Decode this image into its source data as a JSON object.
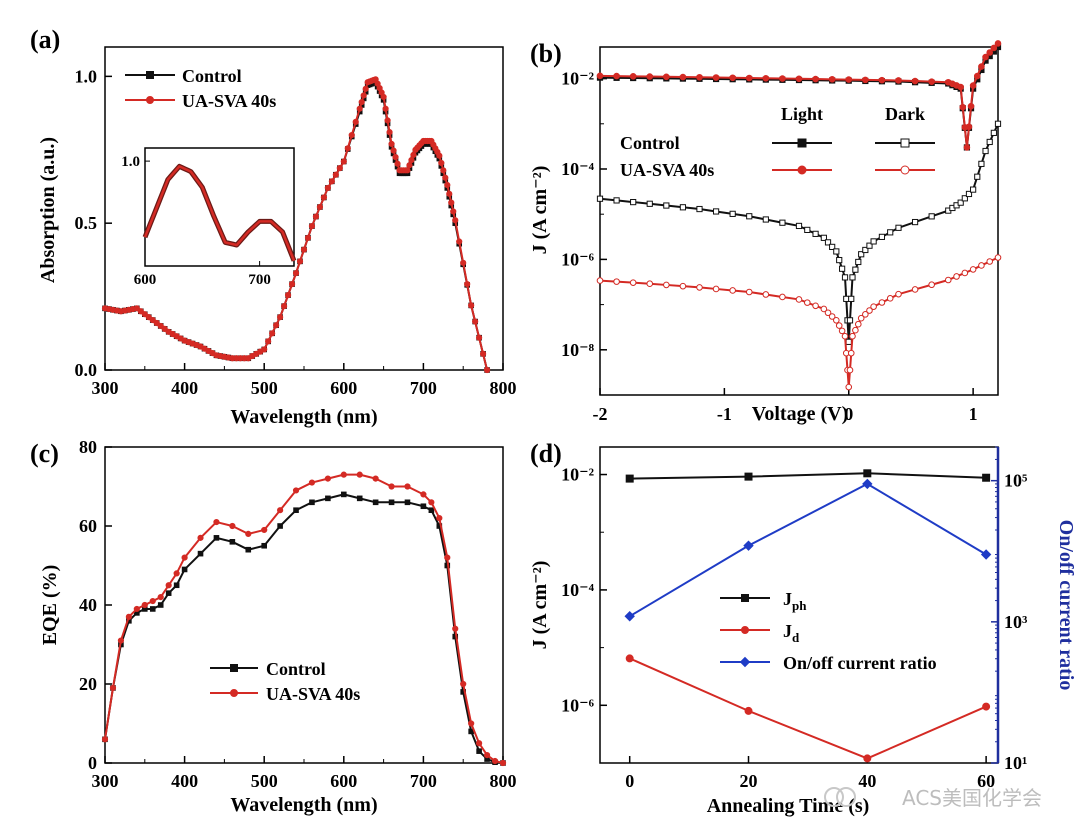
{
  "colors": {
    "black": "#111111",
    "red": "#d42a24",
    "blue": "#1f3cc6",
    "axis_right": "#1f2f9e"
  },
  "watermark": "ACS美国化学会",
  "chart_data": [
    {
      "id": "a",
      "panel_label": "(a)",
      "type": "line",
      "xlabel": "Wavelength (nm)",
      "ylabel": "Absorption (a.u.)",
      "xlim": [
        300,
        800
      ],
      "ylim": [
        0,
        1.1
      ],
      "xticks": [
        300,
        400,
        500,
        600,
        700,
        800
      ],
      "yticks": [
        0.0,
        0.5,
        1.0
      ],
      "ytick_labels": [
        "0.0",
        "0.5",
        "1.0"
      ],
      "legend": {
        "placement": "top-left"
      },
      "x": [
        300,
        320,
        340,
        360,
        380,
        400,
        420,
        440,
        460,
        480,
        500,
        520,
        540,
        560,
        580,
        600,
        620,
        630,
        640,
        650,
        660,
        670,
        680,
        690,
        700,
        710,
        720,
        730,
        740,
        760,
        780
      ],
      "series": [
        {
          "name": "Control",
          "color": "black",
          "marker": "square",
          "values": [
            0.21,
            0.2,
            0.21,
            0.17,
            0.13,
            0.1,
            0.08,
            0.05,
            0.04,
            0.04,
            0.07,
            0.18,
            0.33,
            0.49,
            0.62,
            0.71,
            0.88,
            0.97,
            0.98,
            0.92,
            0.76,
            0.67,
            0.67,
            0.74,
            0.77,
            0.77,
            0.72,
            0.62,
            0.5,
            0.22,
            0.0
          ]
        },
        {
          "name": "UA-SVA 40s",
          "color": "red",
          "marker": "circle",
          "values": [
            0.21,
            0.2,
            0.21,
            0.17,
            0.13,
            0.1,
            0.08,
            0.05,
            0.04,
            0.04,
            0.07,
            0.18,
            0.33,
            0.49,
            0.62,
            0.71,
            0.89,
            0.98,
            0.99,
            0.93,
            0.77,
            0.68,
            0.68,
            0.75,
            0.78,
            0.78,
            0.73,
            0.63,
            0.51,
            0.22,
            0.0
          ]
        }
      ],
      "inset": {
        "xlim": [
          600,
          730
        ],
        "ylim": [
          0.6,
          1.05
        ],
        "xticks": [
          600,
          700
        ],
        "yticks": [
          1.0
        ],
        "ytick_labels": [
          "1.0"
        ],
        "x": [
          600,
          610,
          620,
          630,
          640,
          650,
          660,
          670,
          680,
          690,
          700,
          710,
          720,
          730
        ],
        "values": [
          0.71,
          0.82,
          0.93,
          0.98,
          0.96,
          0.9,
          0.79,
          0.69,
          0.68,
          0.73,
          0.77,
          0.77,
          0.73,
          0.62
        ]
      }
    },
    {
      "id": "b",
      "panel_label": "(b)",
      "type": "line",
      "yscale": "log",
      "xlabel": "Voltage (V)",
      "ylabel": "J (A cm⁻²)",
      "xlim": [
        -2,
        1.2
      ],
      "ylim": [
        1e-09,
        0.05
      ],
      "xticks": [
        -2,
        -1,
        0,
        1
      ],
      "xtick_labels": [
        "-2",
        "-1",
        "0",
        "1"
      ],
      "yticks": [
        1e-08,
        1e-06,
        0.0001,
        0.01
      ],
      "ytick_labels": [
        "10⁻⁸",
        "10⁻⁶",
        "10⁻⁴",
        "10⁻²"
      ],
      "legend": {
        "placement": "upper-right",
        "col_light": "Light",
        "col_dark": "Dark",
        "row_control": "Control",
        "row_ua": "UA-SVA 40s"
      },
      "series": [
        {
          "name": "Control Light",
          "color": "black",
          "marker": "square-filled",
          "x": [
            -2,
            -1.6,
            -1.2,
            -0.8,
            -0.4,
            0,
            0.4,
            0.8,
            0.9,
            0.95,
            1.0,
            1.1,
            1.2
          ],
          "values": [
            0.0105,
            0.0102,
            0.0099,
            0.0096,
            0.0093,
            0.009,
            0.0086,
            0.0078,
            0.006,
            0.0003,
            0.006,
            0.025,
            0.05
          ]
        },
        {
          "name": "UA-SVA 40s Light",
          "color": "red",
          "marker": "circle-filled",
          "x": [
            -2,
            -1.6,
            -1.2,
            -0.8,
            -0.4,
            0,
            0.4,
            0.8,
            0.9,
            0.95,
            1.0,
            1.1,
            1.2
          ],
          "values": [
            0.0115,
            0.0111,
            0.0107,
            0.0103,
            0.0099,
            0.0095,
            0.0091,
            0.0083,
            0.0065,
            0.0003,
            0.007,
            0.03,
            0.06
          ]
        },
        {
          "name": "Control Dark",
          "color": "black",
          "marker": "square-open",
          "x": [
            -2,
            -1.6,
            -1.2,
            -0.8,
            -0.4,
            -0.2,
            -0.1,
            -0.03,
            0,
            0.03,
            0.1,
            0.2,
            0.4,
            0.8,
            0.9,
            1.0,
            1.1,
            1.2
          ],
          "values": [
            2.2e-05,
            1.7e-05,
            1.3e-05,
            9e-06,
            5.5e-06,
            3e-06,
            1.5e-06,
            4e-07,
            1.5e-08,
            4e-07,
            1.3e-06,
            2.5e-06,
            5e-06,
            1.2e-05,
            1.8e-05,
            3.5e-05,
            0.00025,
            0.001
          ]
        },
        {
          "name": "UA-SVA 40s Dark",
          "color": "red",
          "marker": "circle-open",
          "x": [
            -2,
            -1.6,
            -1.2,
            -0.8,
            -0.4,
            -0.2,
            -0.1,
            -0.03,
            0,
            0.03,
            0.1,
            0.2,
            0.4,
            0.8,
            1.0,
            1.2
          ],
          "values": [
            3.4e-07,
            2.9e-07,
            2.4e-07,
            1.9e-07,
            1.3e-07,
            8e-08,
            4.5e-08,
            2e-08,
            1.5e-09,
            2e-08,
            5e-08,
            9e-08,
            1.7e-07,
            3.5e-07,
            6e-07,
            1.1e-06
          ]
        }
      ]
    },
    {
      "id": "c",
      "panel_label": "(c)",
      "type": "line",
      "xlabel": "Wavelength (nm)",
      "ylabel": "EQE (%)",
      "xlim": [
        300,
        800
      ],
      "ylim": [
        0,
        80
      ],
      "xticks": [
        300,
        400,
        500,
        600,
        700,
        800
      ],
      "yticks": [
        0,
        20,
        40,
        60,
        80
      ],
      "legend": {
        "placement": "bottom-center"
      },
      "x": [
        300,
        310,
        320,
        330,
        340,
        350,
        360,
        370,
        380,
        390,
        400,
        420,
        440,
        460,
        480,
        500,
        520,
        540,
        560,
        580,
        600,
        620,
        640,
        660,
        680,
        700,
        710,
        720,
        730,
        740,
        750,
        760,
        770,
        780,
        790,
        800
      ],
      "series": [
        {
          "name": "Control",
          "color": "black",
          "marker": "square",
          "values": [
            6,
            19,
            30,
            36,
            38,
            39,
            39,
            40,
            43,
            45,
            49,
            53,
            57,
            56,
            54,
            55,
            60,
            64,
            66,
            67,
            68,
            67,
            66,
            66,
            66,
            65,
            64,
            60,
            50,
            32,
            18,
            8,
            3,
            1,
            0.2,
            0
          ]
        },
        {
          "name": "UA-SVA 40s",
          "color": "red",
          "marker": "circle",
          "values": [
            6,
            19,
            31,
            37,
            39,
            40,
            41,
            42,
            45,
            48,
            52,
            57,
            61,
            60,
            58,
            59,
            64,
            69,
            71,
            72,
            73,
            73,
            72,
            70,
            70,
            68,
            66,
            62,
            52,
            34,
            20,
            10,
            5,
            2,
            0.5,
            0
          ]
        }
      ]
    },
    {
      "id": "d",
      "panel_label": "(d)",
      "type": "line",
      "yscale": "log",
      "xlabel": "Annealing Time (s)",
      "ylabel": "J (A cm⁻²)",
      "ylabel_right": "On/off current ratio",
      "xlim": [
        -5,
        62
      ],
      "ylim": [
        1e-07,
        0.03
      ],
      "ylim_right": [
        10,
        300000.0
      ],
      "xticks": [
        0,
        20,
        40,
        60
      ],
      "yticks": [
        1e-06,
        0.0001,
        0.01
      ],
      "ytick_labels": [
        "10⁻⁶",
        "10⁻⁴",
        "10⁻²"
      ],
      "yticks_right": [
        10,
        1000,
        100000
      ],
      "ytick_labels_right": [
        "10¹",
        "10³",
        "10⁵"
      ],
      "legend": {
        "placement": "center-right"
      },
      "x": [
        0,
        20,
        40,
        60
      ],
      "series": [
        {
          "name": "J",
          "name_sub": "ph",
          "color": "black",
          "marker": "square",
          "axis": "left",
          "values": [
            0.0085,
            0.0092,
            0.0105,
            0.0088
          ]
        },
        {
          "name": "J",
          "name_sub": "d",
          "color": "red",
          "marker": "circle",
          "axis": "left",
          "values": [
            6.5e-06,
            8e-07,
            1.2e-07,
            9.5e-07
          ]
        },
        {
          "name": "On/off current ratio",
          "color": "blue",
          "marker": "diamond",
          "axis": "right",
          "values": [
            1200,
            12000,
            90000,
            9000
          ]
        }
      ]
    }
  ]
}
